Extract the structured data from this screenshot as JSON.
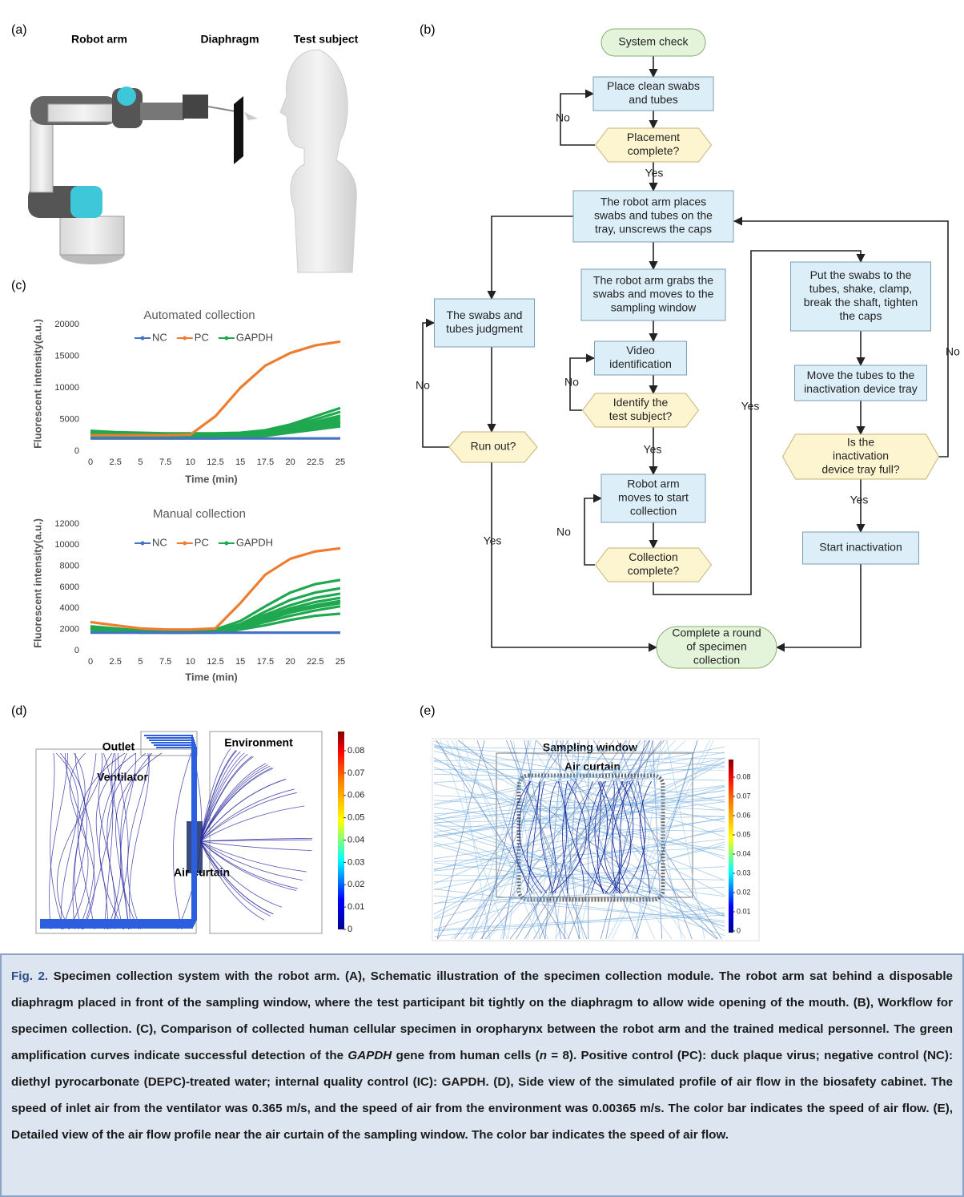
{
  "panel_a": {
    "label": "(a)",
    "labels": [
      "Robot arm",
      "Diaphragm",
      "Test subject"
    ]
  },
  "panel_b": {
    "label": "(b)",
    "nodes": [
      {
        "lines": [
          "System check"
        ]
      },
      {
        "lines": [
          "Place clean swabs",
          "and tubes"
        ]
      },
      {
        "lines": [
          "Placement",
          "complete?"
        ]
      },
      {
        "lines": [
          "The robot arm places",
          "swabs and tubes on the",
          "tray, unscrews the caps"
        ]
      },
      {
        "lines": [
          "The robot arm grabs the",
          "swabs and moves to the",
          "sampling window"
        ]
      },
      {
        "lines": [
          "Video",
          "identification"
        ]
      },
      {
        "lines": [
          "Identify the",
          "test subject?"
        ]
      },
      {
        "lines": [
          "Robot arm",
          "moves to start",
          "collection"
        ]
      },
      {
        "lines": [
          "Collection",
          "complete?"
        ]
      },
      {
        "lines": [
          "The swabs and",
          "tubes judgment"
        ]
      },
      {
        "lines": [
          "Run out?"
        ]
      },
      {
        "lines": [
          "Complete a round",
          "of specimen",
          "collection"
        ]
      },
      {
        "lines": [
          "Put the swabs to the",
          "tubes, shake, clamp,",
          "break the shaft, tighten",
          "the caps"
        ]
      },
      {
        "lines": [
          "Move the tubes to the",
          "inactivation device tray"
        ]
      },
      {
        "lines": [
          "Is the",
          "inactivation",
          "device tray full?"
        ]
      },
      {
        "lines": [
          "Start inactivation"
        ]
      }
    ],
    "edge_labels": [
      "No",
      "Yes",
      "No",
      "Yes",
      "No",
      "Yes",
      "No",
      "Yes",
      "No",
      "Yes"
    ]
  },
  "panel_c": {
    "label": "(c)"
  },
  "chart_data": [
    {
      "type": "line",
      "title": "Automated collection",
      "x_label": "Time (min)",
      "y_label": "Fluorescent intensity(a.u.)",
      "x": [
        0,
        2.5,
        5,
        7.5,
        10,
        12.5,
        15,
        17.5,
        20,
        22.5,
        25
      ],
      "xlim": [
        0,
        25
      ],
      "xticks": [
        0,
        2.5,
        5,
        7.5,
        10,
        12.5,
        15,
        17.5,
        20,
        22.5,
        25
      ],
      "ylim": [
        0,
        20000
      ],
      "yticks": [
        0,
        5000,
        10000,
        15000,
        20000
      ],
      "series": [
        {
          "name": "NC",
          "color": "#4472c4",
          "values": [
            2000,
            2000,
            2000,
            2000,
            2000,
            2000,
            2000,
            2000,
            2000,
            2000,
            2000
          ]
        },
        {
          "name": "PC",
          "color": "#ed7d31",
          "values": [
            2500,
            2500,
            2500,
            2500,
            2600,
            5500,
            10000,
            13500,
            15500,
            16700,
            17300
          ]
        },
        {
          "name": "GAPDH",
          "color": "#1fa84f",
          "values": [
            3200,
            3000,
            2900,
            2800,
            2800,
            2800,
            2900,
            3300,
            4200,
            5500,
            6800
          ]
        },
        {
          "name": "GAPDH",
          "color": "#1fa84f",
          "values": [
            3000,
            2900,
            2800,
            2700,
            2700,
            2700,
            2800,
            3200,
            4000,
            5000,
            6200
          ]
        },
        {
          "name": "GAPDH",
          "color": "#1fa84f",
          "values": [
            2800,
            2700,
            2600,
            2600,
            2600,
            2600,
            2700,
            3000,
            3700,
            4600,
            5600
          ]
        },
        {
          "name": "GAPDH",
          "color": "#1fa84f",
          "values": [
            2600,
            2500,
            2500,
            2500,
            2500,
            2500,
            2600,
            2900,
            3500,
            4300,
            5200
          ]
        },
        {
          "name": "GAPDH",
          "color": "#1fa84f",
          "values": [
            2400,
            2400,
            2400,
            2400,
            2400,
            2400,
            2500,
            2800,
            3300,
            4000,
            4800
          ]
        },
        {
          "name": "GAPDH",
          "color": "#1fa84f",
          "values": [
            2300,
            2300,
            2300,
            2300,
            2300,
            2300,
            2400,
            2700,
            3200,
            3800,
            4500
          ]
        },
        {
          "name": "GAPDH",
          "color": "#1fa84f",
          "values": [
            2200,
            2200,
            2200,
            2200,
            2200,
            2200,
            2300,
            2600,
            3100,
            3600,
            4200
          ]
        },
        {
          "name": "GAPDH",
          "color": "#1fa84f",
          "values": [
            2000,
            2000,
            2000,
            2000,
            2000,
            2000,
            2100,
            2400,
            2900,
            3400,
            3900
          ]
        }
      ]
    },
    {
      "type": "line",
      "title": "Manual collection",
      "x_label": "Time (min)",
      "y_label": "Fluorescent intensity(a.u.)",
      "x": [
        0,
        2.5,
        5,
        7.5,
        10,
        12.5,
        15,
        17.5,
        20,
        22.5,
        25
      ],
      "xlim": [
        0,
        25
      ],
      "xticks": [
        0,
        2.5,
        5,
        7.5,
        10,
        12.5,
        15,
        17.5,
        20,
        22.5,
        25
      ],
      "ylim": [
        0,
        12000
      ],
      "yticks": [
        0,
        2000,
        4000,
        6000,
        8000,
        10000,
        12000
      ],
      "series": [
        {
          "name": "NC",
          "color": "#4472c4",
          "values": [
            1700,
            1700,
            1700,
            1700,
            1700,
            1700,
            1700,
            1700,
            1700,
            1700,
            1700
          ]
        },
        {
          "name": "PC",
          "color": "#ed7d31",
          "values": [
            2700,
            2400,
            2100,
            2000,
            2000,
            2100,
            4500,
            7200,
            8700,
            9400,
            9700
          ]
        },
        {
          "name": "GAPDH",
          "color": "#1fa84f",
          "values": [
            2300,
            2100,
            1900,
            1900,
            1900,
            2000,
            2800,
            4200,
            5500,
            6300,
            6700
          ]
        },
        {
          "name": "GAPDH",
          "color": "#1fa84f",
          "values": [
            2200,
            2000,
            1900,
            1800,
            1800,
            1900,
            2500,
            3700,
            4800,
            5500,
            5900
          ]
        },
        {
          "name": "GAPDH",
          "color": "#1fa84f",
          "values": [
            2200,
            2000,
            1900,
            1800,
            1800,
            1900,
            2400,
            3400,
            4300,
            5000,
            5400
          ]
        },
        {
          "name": "GAPDH",
          "color": "#1fa84f",
          "values": [
            2100,
            2000,
            1800,
            1800,
            1800,
            1800,
            2300,
            3200,
            4000,
            4600,
            5000
          ]
        },
        {
          "name": "GAPDH",
          "color": "#1fa84f",
          "values": [
            2100,
            1900,
            1800,
            1800,
            1800,
            1800,
            2200,
            3000,
            3800,
            4300,
            4700
          ]
        },
        {
          "name": "GAPDH",
          "color": "#1fa84f",
          "values": [
            2000,
            1900,
            1800,
            1800,
            1800,
            1800,
            2200,
            2900,
            3600,
            4100,
            4500
          ]
        },
        {
          "name": "GAPDH",
          "color": "#1fa84f",
          "values": [
            2000,
            1900,
            1800,
            1700,
            1700,
            1800,
            2100,
            2700,
            3300,
            3800,
            4200
          ]
        },
        {
          "name": "GAPDH",
          "color": "#1fa84f",
          "values": [
            1900,
            1800,
            1700,
            1700,
            1700,
            1700,
            2000,
            2400,
            2900,
            3300,
            3500
          ]
        }
      ]
    }
  ],
  "panel_d": {
    "label": "(d)",
    "labels": [
      "Outlet",
      "Environment",
      "Ventilator",
      "Air curtain"
    ],
    "colorbar_ticks": [
      0,
      0.01,
      0.02,
      0.03,
      0.04,
      0.05,
      0.06,
      0.07,
      0.08
    ]
  },
  "panel_e": {
    "label": "(e)",
    "labels": [
      "Sampling window",
      "Air curtain"
    ],
    "colorbar_ticks": [
      0,
      0.01,
      0.02,
      0.03,
      0.04,
      0.05,
      0.06,
      0.07,
      0.08
    ]
  },
  "caption": {
    "label": "Fig. 2.",
    "parts": [
      "Specimen collection system with the robot arm. (A), Schematic illustration of the specimen collection module. The robot arm sat behind a disposable diaphragm placed in front of the sampling window, where the test participant bit tightly on the diaphragm to allow wide opening of the mouth. (B), Workflow for specimen collection. (C), Comparison of collected human cellular specimen in oropharynx between the robot arm and the trained medical personnel. The green amplification curves indicate successful detection of the ",
      "GAPDH",
      " gene from human cells (",
      "n",
      " = 8). Positive control (PC): duck plaque virus; negative control (NC): diethyl pyrocarbonate (DEPC)-treated water; internal quality control (IC): GAPDH. (D), Side view of the simulated profile of air flow in the biosafety cabinet. The speed of inlet air from the ventilator was 0.365 m/s, and the speed of air from the environment was 0.00365 m/s. The color bar indicates the speed of air flow. (E), Detailed view of the air flow profile near the air curtain of the sampling window. The color bar indicates the speed of air flow."
    ]
  }
}
